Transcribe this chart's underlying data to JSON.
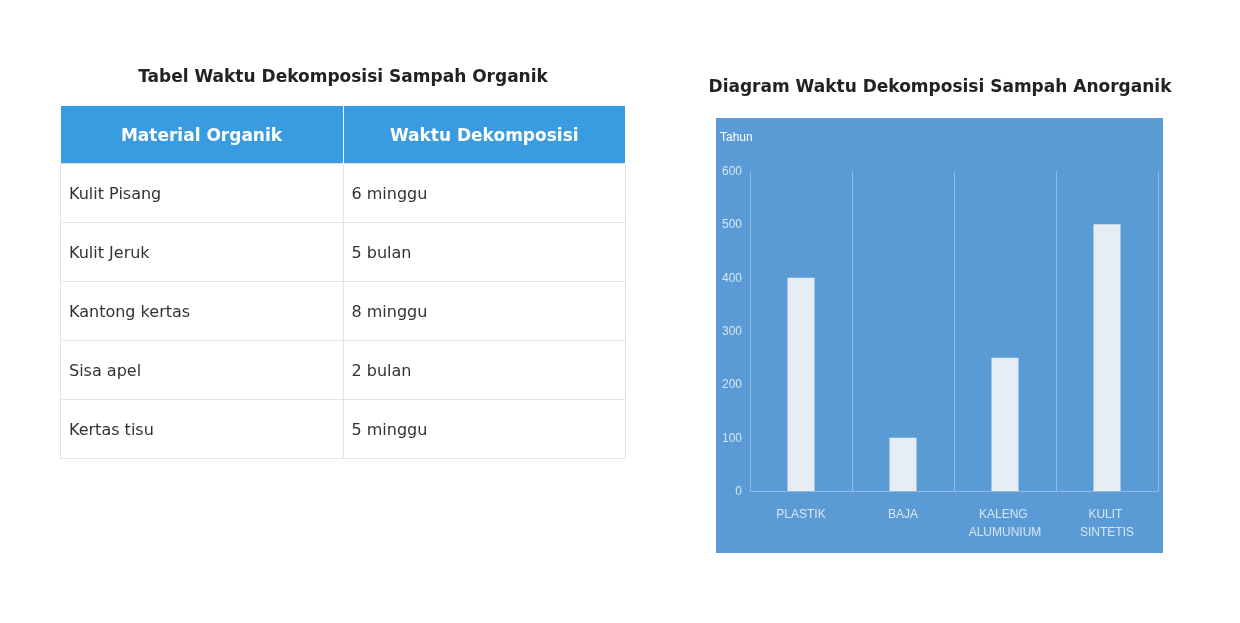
{
  "chart_data": [
    {
      "type": "other",
      "title": "Tabel Waktu Dekomposisi Sampah Organik",
      "categories": [
        "Material Organik",
        "Waktu Dekomposisi"
      ],
      "color": "#3a9ce0",
      "y_categories": [
        "Kulit Pisang",
        "Kulit Jeruk",
        "Kantong kertas",
        "Sisa apel",
        "Kertas tisu"
      ],
      "cell_labels": [
        [
          "6 minggu"
        ],
        [
          "5 bulan"
        ],
        [
          "8 minggu"
        ],
        [
          "2 bulan"
        ],
        [
          "5 minggu"
        ]
      ]
    },
    {
      "type": "bar",
      "title": "Diagram Waktu Dekomposisi Sampah Anorganik",
      "ylabel": "Tahun",
      "categories": [
        "PLASTIK",
        "BAJA",
        "KALENG ALUMUNIUM",
        "KULIT SINTETIS"
      ],
      "values": [
        400,
        100,
        250,
        500
      ],
      "color": "#e6edf5",
      "ylim": [
        0,
        600
      ],
      "yticks": [
        0,
        100,
        200,
        300,
        400,
        500,
        600
      ],
      "grid": "x"
    }
  ]
}
